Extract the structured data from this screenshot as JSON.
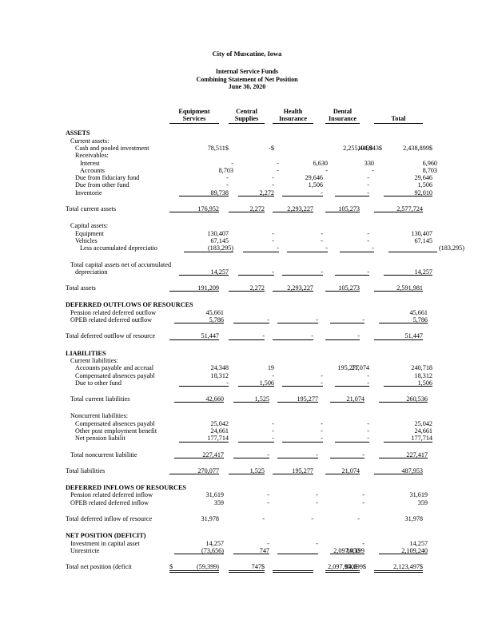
{
  "page": {
    "title": "City of Muscatine, Iowa",
    "subtitle1": "Internal Service Funds",
    "subtitle2": "Combining Statement of Net Position",
    "subtitle3": "June 30, 2020"
  },
  "table": {
    "columns": [
      {
        "line1": "Equipment",
        "line2": "Services"
      },
      {
        "line1": "Central",
        "line2": "Supplies"
      },
      {
        "line1": "Health",
        "line2": "Insurance"
      },
      {
        "line1": "Dental",
        "line2": "Insurance"
      },
      {
        "line1": "",
        "line2": "Total"
      }
    ],
    "rows": [
      {
        "label": "ASSETS",
        "bold": true,
        "indent": 0
      },
      {
        "label": "Current assets:",
        "indent": 1
      },
      {
        "label": "Cash and pooled investment",
        "indent": 2,
        "values": [
          "78,511$",
          "-$",
          "2,255,445$",
          "104,943$",
          "2,438,899$"
        ],
        "shift": {
          "2": 62,
          "3": 16
        }
      },
      {
        "label": "Receivables:",
        "indent": 2
      },
      {
        "label": "Interest",
        "indent": 3,
        "values": [
          "-",
          "-",
          "6,630",
          "330",
          "6,960"
        ]
      },
      {
        "label": "Accounts",
        "indent": 3,
        "values": [
          "8,703",
          "-",
          "-",
          "-",
          "8,703"
        ]
      },
      {
        "label": "Due from fiduciary fund",
        "indent": 2,
        "values": [
          "-",
          "-",
          "29,646",
          "-",
          "29,646"
        ]
      },
      {
        "label": "Due from other fund",
        "indent": 2,
        "values": [
          "-",
          "-",
          "1,506",
          "-",
          "1,506"
        ]
      },
      {
        "label": "Inventorie",
        "indent": 2,
        "values": [
          "89,738",
          "2,272",
          "-",
          "-",
          "92,010"
        ],
        "u": 1
      },
      {
        "gap": 11
      },
      {
        "label": "Total current assets",
        "indent": 0,
        "values": [
          "176,952",
          "2,272",
          "2,293,227",
          "105,273",
          "2,577,724"
        ],
        "u": 1
      },
      {
        "gap": 12
      },
      {
        "label": "Capital assets:",
        "indent": 1
      },
      {
        "label": "Equipment",
        "indent": 2,
        "values": [
          "130,407",
          "-",
          "-",
          "-",
          "130,407"
        ]
      },
      {
        "label": "Vehicles",
        "indent": 2,
        "values": [
          "67,145",
          "-",
          "-",
          "-",
          "67,145"
        ]
      },
      {
        "label": "Less accumulated depreciatio",
        "indent": 3,
        "values": [
          "(183,295)",
          "-",
          "-",
          "-",
          "(183,295)"
        ],
        "u": 1,
        "shift": {
          "4": 34
        }
      },
      {
        "gap": 11
      },
      {
        "label": "Total capital assets net of accumulated",
        "indent": 1
      },
      {
        "label": "depreciation",
        "indent": 2,
        "values": [
          "14,257",
          "-",
          "-",
          "-",
          "14,257"
        ],
        "u": 1
      },
      {
        "gap": 11
      },
      {
        "label": "Total assets",
        "indent": 0,
        "values": [
          "191,209",
          "2,272",
          "2,293,227",
          "105,273",
          "2,591,981"
        ],
        "u": 1
      },
      {
        "gap": 12
      },
      {
        "label": "DEFERRED OUTFLOWS OF RESOURCES",
        "bold": true,
        "indent": 0
      },
      {
        "label": "Pension related deferred outflow",
        "indent": 1,
        "values": [
          "45,661",
          "",
          "",
          "",
          "45,661"
        ]
      },
      {
        "label": "OPEB related deferred outflow",
        "indent": 1,
        "values": [
          "5,786",
          "-",
          "-",
          "-",
          "5,786"
        ],
        "u": 1
      },
      {
        "gap": 11
      },
      {
        "label": "Total deferred outflow of resource",
        "indent": 0,
        "values": [
          "51,447",
          "-",
          "-",
          "-",
          "51,447"
        ],
        "u": 1
      },
      {
        "gap": 12
      },
      {
        "label": "LIABILITIES",
        "bold": true,
        "indent": 0
      },
      {
        "label": "Current liabilities:",
        "indent": 1
      },
      {
        "label": "Accounts payable and accrual",
        "indent": 2,
        "values": [
          "24,348",
          "19",
          "195,277",
          "21,074",
          "240,718"
        ],
        "shift": {
          "2": 45
        }
      },
      {
        "label": "Compensated absences payabl",
        "indent": 2,
        "values": [
          "18,312",
          "-",
          "-",
          "-",
          "18,312"
        ]
      },
      {
        "label": "Due to other fund",
        "indent": 2,
        "values": [
          "-",
          "1,506",
          "-",
          "-",
          "1,506"
        ],
        "u": 1
      },
      {
        "gap": 11
      },
      {
        "label": "Total current liabilities",
        "indent": 1,
        "values": [
          "42,660",
          "1,525",
          "195,277",
          "21,074",
          "260,536"
        ],
        "u": 1
      },
      {
        "gap": 12
      },
      {
        "label": "Noncurrent liabilities:",
        "indent": 1
      },
      {
        "label": "Compensated absences payabl",
        "indent": 2,
        "values": [
          "25,042",
          "-",
          "-",
          "-",
          "25,042"
        ]
      },
      {
        "label": "Other post employment benefit",
        "indent": 2,
        "values": [
          "24,661",
          "-",
          "-",
          "-",
          "24,661"
        ]
      },
      {
        "label": "Net pension liabilit",
        "indent": 2,
        "values": [
          "177,714",
          "-",
          "-",
          "-",
          "177,714"
        ],
        "u": 1
      },
      {
        "gap": 11
      },
      {
        "label": "Total noncurrent liabilitie",
        "indent": 1,
        "values": [
          "227,417",
          "-",
          "-",
          "-",
          "227,417"
        ],
        "u": 1
      },
      {
        "gap": 11
      },
      {
        "label": "Total liabilities",
        "indent": 0,
        "values": [
          "270,077",
          "1,525",
          "195,277",
          "21,074",
          "487,953"
        ],
        "u": 1
      },
      {
        "gap": 12
      },
      {
        "label": "DEFERRED INFLOWS OF RESOURCES",
        "bold": true,
        "indent": 0
      },
      {
        "label": "Pension related deferred inflow",
        "indent": 1,
        "values": [
          "31,619",
          "-",
          "-",
          "-",
          "31,619"
        ]
      },
      {
        "label": "OPEB related deferred inflow",
        "indent": 1,
        "values": [
          "359",
          "-",
          "-",
          "-",
          "359"
        ]
      },
      {
        "gap": 11
      },
      {
        "label": "Total deferred inflow of resource",
        "indent": 0,
        "values": [
          "31,978",
          "-",
          "-",
          "-",
          "31,978"
        ]
      },
      {
        "gap": 12
      },
      {
        "label": "NET POSITION (DEFICIT)",
        "bold": true,
        "indent": 0
      },
      {
        "label": "Investment in capital asset",
        "indent": 1,
        "values": [
          "14,257",
          "-",
          "-",
          "-",
          "14,257"
        ]
      },
      {
        "label": "Unrestricte",
        "indent": 1,
        "values": [
          "(73,656)",
          "747",
          "2,097,950",
          "84,199",
          "2,109,240"
        ],
        "u": 1,
        "shift": {
          "2": 52
        }
      },
      {
        "gap": 11
      },
      {
        "label": "Total net position (deficit",
        "indent": 0,
        "values": [
          "$ (59,399)",
          "747$",
          "2,097,950$",
          "84,199$",
          "2,123,497$"
        ],
        "u": 2,
        "shift": {
          "2": 55,
          "3": 8
        }
      }
    ]
  }
}
